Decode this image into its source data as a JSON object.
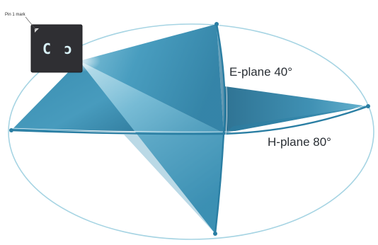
{
  "pin_label": "Pin 1 mark",
  "chip_glyphs": [
    "C",
    "ɔ"
  ],
  "e_plane_label": "E-plane 40°",
  "h_plane_label": "H-plane 80°",
  "colors": {
    "ellipse": "#9fd2e0",
    "beam_dark": "#1f6f92",
    "beam_mid": "#3c94b8",
    "beam_light": "#a9d8e8",
    "axis": "#2b7fa4",
    "chip_body": "#2f2f33",
    "chip_glow": "#b9eef9"
  }
}
